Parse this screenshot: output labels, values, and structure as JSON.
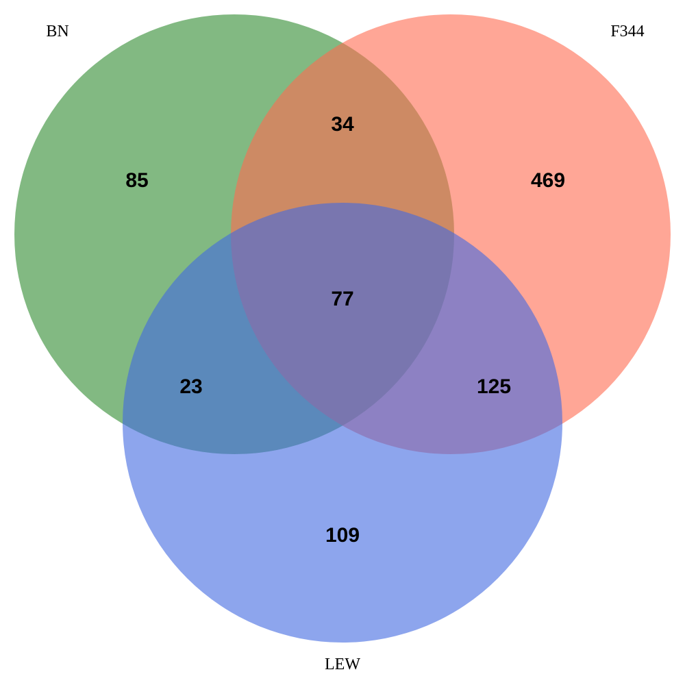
{
  "sets": [
    {
      "key": "BN",
      "label": "BN",
      "color": "#2e8b2e"
    },
    {
      "key": "F344",
      "label": "F344",
      "color": "#ff6a50"
    },
    {
      "key": "LEW",
      "label": "LEW",
      "color": "#4169e1"
    }
  ],
  "regions": {
    "bn_only": "85",
    "f344_only": "469",
    "lew_only": "109",
    "bn_f344": "34",
    "bn_lew": "23",
    "f344_lew": "125",
    "all": "77"
  },
  "circle_opacity": 0.6
}
